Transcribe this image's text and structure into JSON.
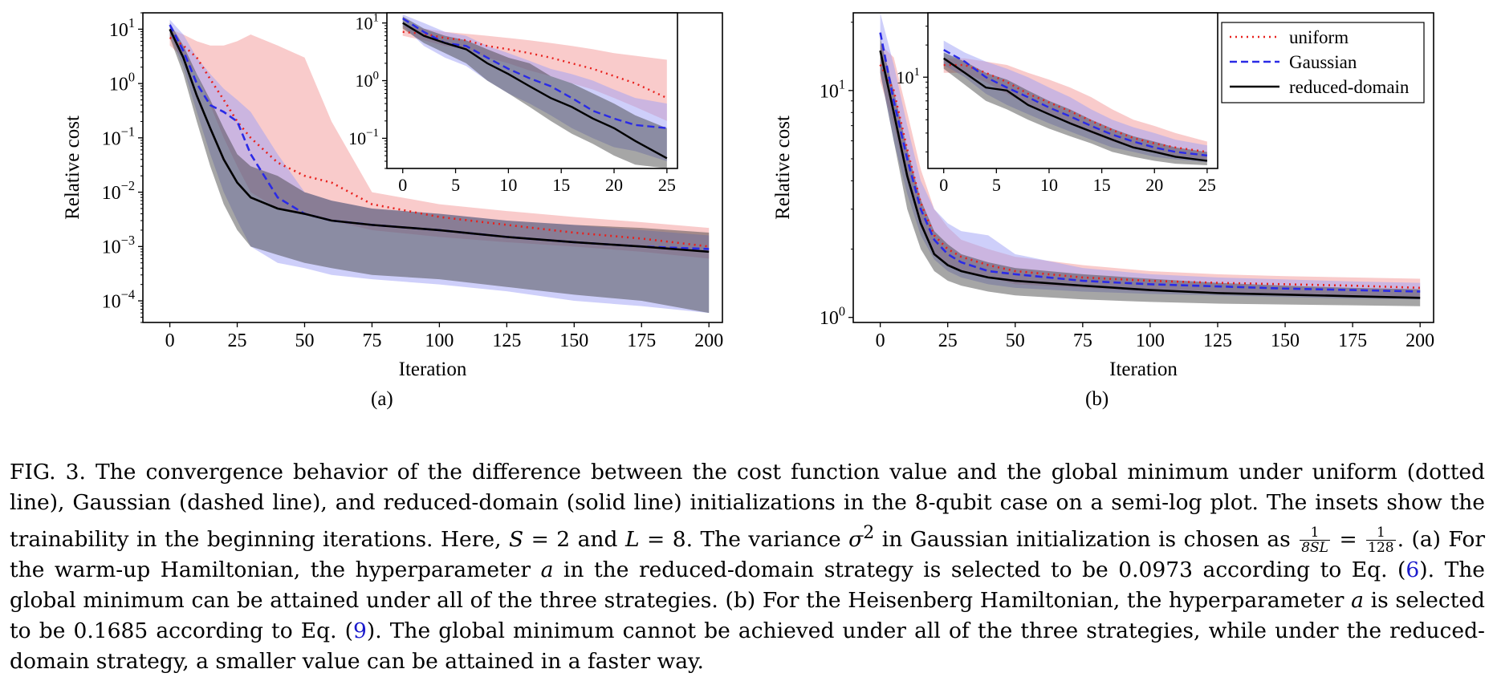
{
  "figure": {
    "subplot_labels": [
      "(a)",
      "(b)"
    ],
    "legend": [
      {
        "label": "uniform",
        "style": "dotted",
        "color": "#e8201c"
      },
      {
        "label": "Gaussian",
        "style": "dashed",
        "color": "#2a2ae6"
      },
      {
        "label": "reduced-domain",
        "style": "solid",
        "color": "#000000"
      }
    ]
  },
  "chart_data": [
    {
      "panel": "(a)",
      "type": "line",
      "xlabel": "Iteration",
      "ylabel": "Relative cost",
      "yscale": "log",
      "xlim": [
        -10,
        205
      ],
      "ylim": [
        4e-05,
        20
      ],
      "xticks": [
        0,
        25,
        50,
        75,
        100,
        125,
        150,
        175,
        200
      ],
      "yticks": [
        {
          "v": 10,
          "e": "1"
        },
        {
          "v": 1,
          "e": "0"
        },
        {
          "v": 0.1,
          "e": "−1"
        },
        {
          "v": 0.01,
          "e": "−2"
        },
        {
          "v": 0.001,
          "e": "−3"
        },
        {
          "v": 0.0001,
          "e": "−4"
        }
      ],
      "x": [
        0,
        5,
        10,
        15,
        20,
        25,
        30,
        40,
        50,
        60,
        75,
        100,
        125,
        150,
        175,
        200
      ],
      "series": [
        {
          "name": "uniform",
          "values": [
            7,
            5,
            3,
            1.2,
            0.5,
            0.2,
            0.1,
            0.035,
            0.02,
            0.015,
            0.006,
            0.0035,
            0.0025,
            0.0018,
            0.0014,
            0.001
          ],
          "band_low": [
            5,
            3,
            1.5,
            0.4,
            0.1,
            0.03,
            0.01,
            0.005,
            0.004,
            0.003,
            0.002,
            0.0015,
            0.0012,
            0.001,
            0.0008,
            0.0006
          ],
          "band_high": [
            10,
            8,
            6,
            5,
            5,
            6,
            8,
            5,
            3,
            0.2,
            0.01,
            0.006,
            0.0045,
            0.0035,
            0.0028,
            0.0022
          ]
        },
        {
          "name": "Gaussian",
          "values": [
            12,
            4,
            1,
            0.4,
            0.3,
            0.2,
            0.05,
            0.008,
            0.004,
            0.003,
            0.0025,
            0.002,
            0.0015,
            0.0012,
            0.001,
            0.0009
          ],
          "band_low": [
            8,
            2,
            0.3,
            0.05,
            0.01,
            0.003,
            0.001,
            0.0005,
            0.0004,
            0.0003,
            0.00025,
            0.0002,
            0.00015,
            0.0001,
            8e-05,
            6e-05
          ],
          "band_high": [
            15,
            8,
            3,
            1.5,
            0.8,
            0.5,
            0.3,
            0.05,
            0.01,
            0.007,
            0.005,
            0.004,
            0.003,
            0.0025,
            0.002,
            0.0016
          ]
        },
        {
          "name": "reduced-domain",
          "values": [
            10,
            3,
            0.6,
            0.15,
            0.04,
            0.015,
            0.008,
            0.005,
            0.004,
            0.003,
            0.0025,
            0.002,
            0.0015,
            0.0012,
            0.001,
            0.0008
          ],
          "band_low": [
            7,
            1.5,
            0.2,
            0.03,
            0.006,
            0.002,
            0.001,
            0.0007,
            0.0005,
            0.0004,
            0.0003,
            0.00025,
            0.00018,
            0.00013,
            0.0001,
            6e-05
          ],
          "band_high": [
            13,
            5,
            1.5,
            0.5,
            0.15,
            0.05,
            0.03,
            0.02,
            0.01,
            0.007,
            0.005,
            0.004,
            0.003,
            0.0025,
            0.0022,
            0.0018
          ]
        }
      ],
      "inset": {
        "xlim": [
          -1.5,
          26
        ],
        "ylim": [
          0.03,
          15
        ],
        "xticks": [
          0,
          5,
          10,
          15,
          20,
          25
        ],
        "yticks": [
          {
            "v": 10,
            "e": "1"
          },
          {
            "v": 1,
            "e": "0"
          },
          {
            "v": 0.1,
            "e": "−1"
          }
        ],
        "x": [
          0,
          2,
          4,
          6,
          8,
          10,
          12,
          14,
          16,
          18,
          20,
          22,
          25
        ],
        "series": [
          {
            "name": "uniform",
            "values": [
              7,
              6.5,
              5.5,
              5,
              4,
              3.5,
              3,
              2.5,
              2,
              1.6,
              1.2,
              0.9,
              0.5
            ],
            "band_low": [
              6,
              5,
              4,
              3.5,
              2.5,
              2,
              1.5,
              1.2,
              0.9,
              0.7,
              0.5,
              0.35,
              0.2
            ],
            "band_high": [
              9,
              8,
              7,
              6.5,
              6,
              5.5,
              5,
              4.5,
              4,
              3.5,
              3,
              2.7,
              2.3
            ]
          },
          {
            "name": "Gaussian",
            "values": [
              12,
              7,
              4.5,
              4,
              2.5,
              1.6,
              1.1,
              0.8,
              0.5,
              0.3,
              0.22,
              0.17,
              0.15
            ],
            "band_low": [
              9,
              4,
              2.5,
              1.8,
              1,
              0.6,
              0.4,
              0.25,
              0.15,
              0.1,
              0.07,
              0.06,
              0.04
            ],
            "band_high": [
              14,
              10,
              7,
              6,
              4,
              3,
              2.2,
              1.6,
              1.3,
              1,
              0.7,
              0.5,
              0.4
            ]
          },
          {
            "name": "reduced-domain",
            "values": [
              10,
              6,
              4.5,
              3.5,
              2,
              1.3,
              0.8,
              0.5,
              0.35,
              0.22,
              0.15,
              0.09,
              0.045
            ],
            "band_low": [
              8,
              4.5,
              3,
              2,
              1,
              0.6,
              0.35,
              0.2,
              0.12,
              0.08,
              0.05,
              0.035,
              0.03
            ],
            "band_high": [
              13,
              8,
              6,
              5,
              3.5,
              2.5,
              2,
              1.2,
              0.9,
              0.6,
              0.4,
              0.25,
              0.15
            ]
          }
        ]
      }
    },
    {
      "panel": "(b)",
      "type": "line",
      "xlabel": "Iteration",
      "ylabel": "Relative cost",
      "yscale": "log",
      "xlim": [
        -10,
        205
      ],
      "ylim": [
        0.95,
        22
      ],
      "xticks": [
        0,
        25,
        50,
        75,
        100,
        125,
        150,
        175,
        200
      ],
      "yticks": [
        {
          "v": 10,
          "e": "1"
        },
        {
          "v": 1,
          "e": "0"
        }
      ],
      "x": [
        0,
        5,
        10,
        15,
        20,
        25,
        30,
        40,
        50,
        75,
        100,
        125,
        150,
        175,
        200
      ],
      "series": [
        {
          "name": "uniform",
          "values": [
            13,
            10,
            5.5,
            3.2,
            2.3,
            2.0,
            1.85,
            1.7,
            1.6,
            1.5,
            1.45,
            1.42,
            1.4,
            1.38,
            1.35
          ],
          "band_low": [
            11,
            7,
            4,
            2.5,
            1.9,
            1.7,
            1.6,
            1.5,
            1.4,
            1.35,
            1.3,
            1.28,
            1.26,
            1.24,
            1.22
          ],
          "band_high": [
            16,
            14,
            8,
            4.5,
            3,
            2.5,
            2.2,
            2,
            1.85,
            1.7,
            1.6,
            1.55,
            1.52,
            1.5,
            1.48
          ]
        },
        {
          "name": "Gaussian",
          "values": [
            18,
            9,
            5,
            3,
            2.2,
            1.9,
            1.75,
            1.6,
            1.55,
            1.45,
            1.4,
            1.37,
            1.34,
            1.32,
            1.3
          ],
          "band_low": [
            12,
            6,
            3.5,
            2.3,
            1.8,
            1.6,
            1.5,
            1.4,
            1.35,
            1.3,
            1.27,
            1.25,
            1.23,
            1.21,
            1.2
          ],
          "band_high": [
            22,
            13,
            7,
            4,
            3,
            2.6,
            2.4,
            2.3,
            1.9,
            1.65,
            1.55,
            1.5,
            1.47,
            1.44,
            1.42
          ]
        },
        {
          "name": "reduced-domain",
          "values": [
            15,
            8,
            4.2,
            2.6,
            1.9,
            1.7,
            1.6,
            1.5,
            1.45,
            1.38,
            1.32,
            1.28,
            1.26,
            1.24,
            1.22
          ],
          "band_low": [
            12,
            6,
            3,
            2,
            1.6,
            1.45,
            1.38,
            1.3,
            1.25,
            1.2,
            1.17,
            1.15,
            1.14,
            1.13,
            1.12
          ],
          "band_high": [
            17,
            10,
            5.5,
            3.3,
            2.4,
            2.1,
            1.9,
            1.75,
            1.65,
            1.55,
            1.48,
            1.42,
            1.38,
            1.35,
            1.33
          ]
        }
      ],
      "inset": {
        "xlim": [
          -1.5,
          26
        ],
        "ylim": [
          1.4,
          40
        ],
        "xticks": [
          0,
          5,
          10,
          15,
          20,
          25
        ],
        "yticks": [
          {
            "v": 10,
            "e": "1"
          }
        ],
        "x": [
          0,
          2,
          4,
          6,
          8,
          10,
          12,
          14,
          16,
          18,
          20,
          22,
          25
        ],
        "series": [
          {
            "name": "uniform",
            "values": [
              13,
              13,
              11,
              9,
              7,
              5.8,
              4.8,
              3.9,
              3.2,
              2.7,
              2.4,
              2.2,
              2.0
            ],
            "band_low": [
              11,
              11,
              9,
              7,
              5.5,
              4.5,
              3.6,
              3,
              2.5,
              2.2,
              2,
              1.85,
              1.7
            ],
            "band_high": [
              15,
              15,
              14,
              13,
              11,
              9.5,
              8,
              6.5,
              5,
              4,
              3.5,
              3,
              2.5
            ]
          },
          {
            "name": "Gaussian",
            "values": [
              18,
              14,
              10,
              8,
              6.5,
              5.2,
              4.3,
              3.5,
              2.9,
              2.5,
              2.2,
              2.0,
              1.85
            ],
            "band_low": [
              13,
              10,
              7,
              5.5,
              4.5,
              3.7,
              3.1,
              2.6,
              2.2,
              2,
              1.8,
              1.7,
              1.6
            ],
            "band_high": [
              22,
              17,
              14,
              12,
              10,
              8,
              6.5,
              5,
              4,
              3.4,
              3,
              2.6,
              2.3
            ]
          },
          {
            "name": "reduced-domain",
            "values": [
              15,
              11,
              8,
              7.5,
              5.5,
              4.5,
              3.7,
              3.1,
              2.6,
              2.2,
              2.0,
              1.8,
              1.65
            ],
            "band_low": [
              12,
              8.5,
              6,
              5,
              4,
              3.3,
              2.8,
              2.4,
              2,
              1.8,
              1.65,
              1.55,
              1.5
            ],
            "band_high": [
              17,
              14,
              11,
              9.5,
              7.5,
              6,
              5,
              4,
              3.3,
              2.8,
              2.5,
              2.2,
              2
            ]
          }
        ]
      }
    }
  ],
  "caption": {
    "label": "FIG. 3.",
    "part1": "The convergence behavior of the difference between the cost function value and the global minimum under uniform (dotted line), Gaussian (dashed line), and reduced-domain (solid line) initializations in the 8-qubit case on a semi-log plot. The insets show the trainability in the beginning iterations. Here,",
    "S": "S",
    "eq": " = 2 and ",
    "L": "L",
    "eq2": " = 8. The variance ",
    "sigma": "σ",
    "sup2": "2",
    "part2": " in Gaussian initialization is chosen as",
    "frac1_num": "1",
    "frac1_den": "8SL",
    "equals": " = ",
    "frac2_num": "1",
    "frac2_den": "128",
    "part3": ". (a) For the warm-up Hamiltonian, the hyperparameter ",
    "a1": "a",
    "part4": " in the reduced-domain strategy is selected to be 0.0973 according to Eq. (",
    "ref1": "6",
    "part5": "). The global minimum can be attained under all of the three strategies. (b) For the Heisenberg Hamiltonian, the hyperparameter ",
    "a2": "a",
    "part6": " is selected to be 0.1685 according to Eq. (",
    "ref2": "9",
    "part7": "). The global minimum cannot be achieved under all of the three strategies, while under the reduced-domain strategy, a smaller value can be attained in a faster way."
  }
}
